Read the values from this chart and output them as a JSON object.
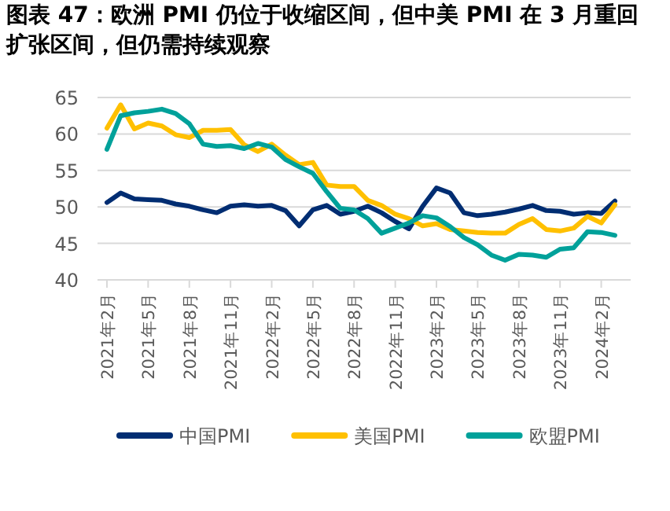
{
  "chart_data": {
    "type": "line",
    "title": "图表 47：欧洲 PMI 仍位于收缩区间，但中美 PMI 在 3 月重回扩张区间，但仍需持续观察",
    "categories": [
      "2021年2月",
      null,
      null,
      "2021年5月",
      null,
      null,
      "2021年8月",
      null,
      null,
      "2021年11月",
      null,
      null,
      "2022年2月",
      null,
      null,
      "2022年5月",
      null,
      null,
      "2022年8月",
      null,
      null,
      "2022年11月",
      null,
      null,
      "2023年2月",
      null,
      null,
      "2023年5月",
      null,
      null,
      "2023年8月",
      null,
      null,
      "2023年11月",
      null,
      null,
      "2024年2月",
      null
    ],
    "ylim": [
      40,
      65
    ],
    "yticks": [
      40,
      45,
      50,
      55,
      60,
      65
    ],
    "grid": "y",
    "legend": "bottom",
    "line_style": "solid",
    "marker": "none",
    "series": [
      {
        "name": "中国PMI",
        "color": "#002d72",
        "values": [
          50.6,
          51.9,
          51.1,
          51.0,
          50.9,
          50.4,
          50.1,
          49.6,
          49.2,
          50.1,
          50.3,
          50.1,
          50.2,
          49.5,
          47.4,
          49.6,
          50.2,
          49.0,
          49.4,
          50.1,
          49.2,
          48.0,
          47.0,
          50.1,
          52.6,
          51.9,
          49.2,
          48.8,
          49.0,
          49.3,
          49.7,
          50.2,
          49.5,
          49.4,
          49.0,
          49.2,
          49.1,
          50.8
        ]
      },
      {
        "name": "美国PMI",
        "color": "#ffc000",
        "values": [
          60.8,
          64.0,
          60.7,
          61.5,
          61.1,
          59.9,
          59.5,
          60.5,
          60.5,
          60.6,
          58.5,
          57.6,
          58.6,
          57.1,
          55.8,
          56.1,
          53.0,
          52.8,
          52.8,
          50.9,
          50.2,
          49.0,
          48.4,
          47.4,
          47.7,
          46.9,
          46.7,
          46.5,
          46.4,
          46.4,
          47.6,
          48.4,
          46.9,
          46.7,
          47.1,
          48.7,
          47.8,
          50.3
        ]
      },
      {
        "name": "欧盟PMI",
        "color": "#00a19a",
        "values": [
          57.9,
          62.5,
          62.9,
          63.1,
          63.4,
          62.8,
          61.4,
          58.6,
          58.3,
          58.4,
          58.0,
          58.7,
          58.2,
          56.5,
          55.5,
          54.6,
          52.1,
          49.8,
          49.6,
          48.4,
          46.4,
          47.1,
          47.8,
          48.8,
          48.5,
          47.3,
          45.8,
          44.8,
          43.4,
          42.7,
          43.5,
          43.4,
          43.1,
          44.2,
          44.4,
          46.6,
          46.5,
          46.1
        ]
      }
    ]
  }
}
